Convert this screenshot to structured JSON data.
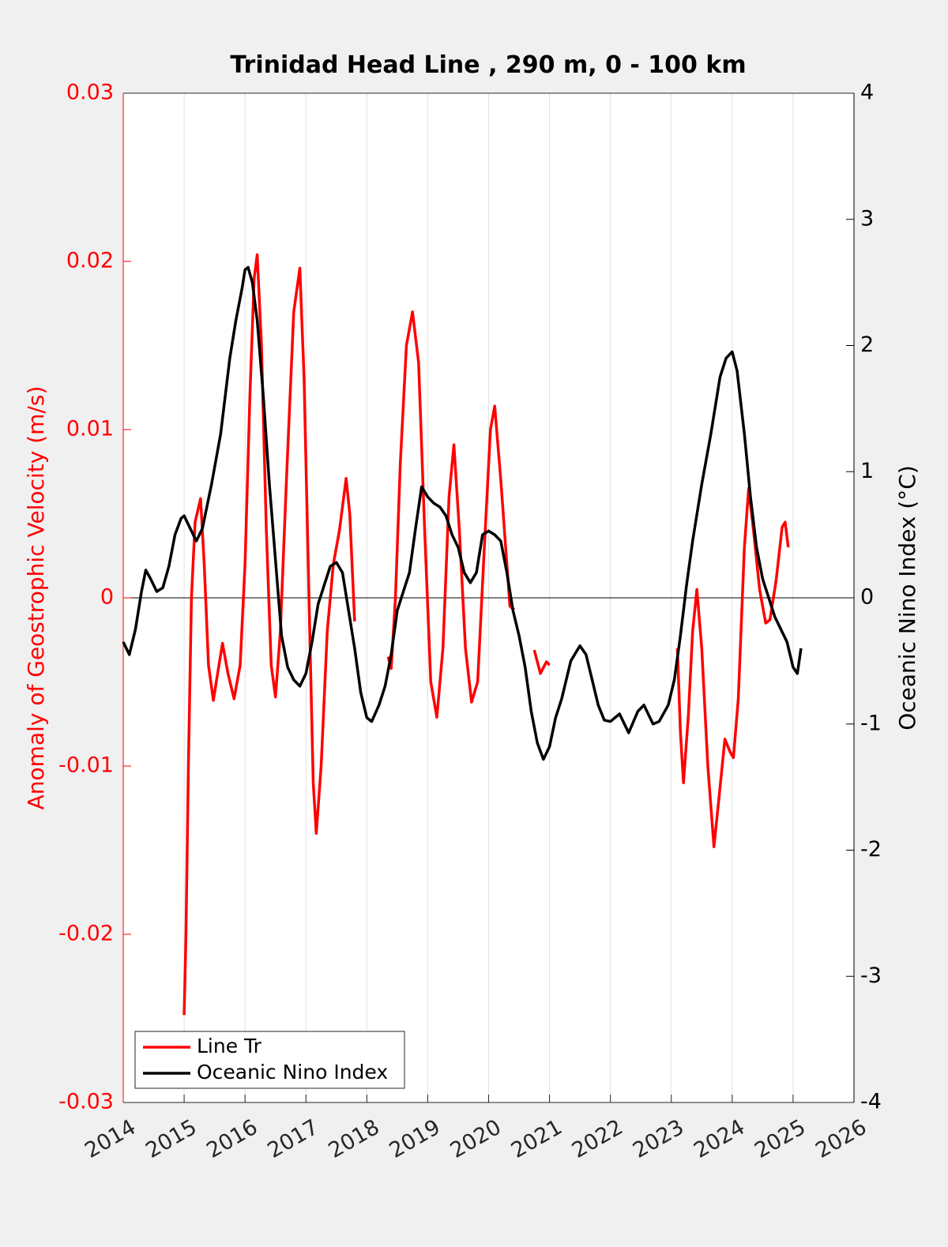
{
  "chart_data": {
    "type": "line",
    "title": "Trinidad Head Line , 290 m, 0 - 100 km",
    "y_label": "Anomaly of Geostrophic Velocity (m/s)",
    "y2_label": "Oceanic Nino Index (°C)",
    "xlim": [
      2014,
      2026
    ],
    "xticks": [
      2014,
      2015,
      2016,
      2017,
      2018,
      2019,
      2020,
      2021,
      2022,
      2023,
      2024,
      2025,
      2026
    ],
    "ylim": [
      -0.03,
      0.03
    ],
    "yticks": [
      -0.03,
      -0.02,
      -0.01,
      0,
      0.01,
      0.02,
      0.03
    ],
    "y2lim": [
      -4,
      4
    ],
    "y2ticks": [
      -4,
      -3,
      -2,
      -1,
      0,
      1,
      2,
      3,
      4
    ],
    "grid": "x",
    "legend": "lower left",
    "y_color": "#ff0000",
    "y2_color": "#000000",
    "series": [
      {
        "name": "Line Tr",
        "color": "#ff0000",
        "x": [
          2015.0,
          2015.03,
          2015.07,
          2015.12,
          2015.18,
          2015.27,
          2015.33,
          2015.4,
          2015.48,
          2015.55,
          2015.63,
          2015.72,
          2015.82,
          2015.92,
          2016.0,
          2016.08,
          2016.15,
          2016.2,
          2016.27,
          2016.35,
          2016.43,
          2016.5,
          2016.58,
          2016.68,
          2016.8,
          2016.9,
          2016.97,
          2017.05,
          2017.12,
          2017.17,
          2017.25,
          2017.35,
          2017.45,
          2017.55,
          2017.66,
          2017.72,
          2017.8,
          2018.1,
          2018.35,
          2018.4,
          2018.47,
          2018.55,
          2018.65,
          2018.75,
          2018.85,
          2018.95,
          2019.05,
          2019.15,
          2019.25,
          2019.35,
          2019.43,
          2019.52,
          2019.62,
          2019.72,
          2019.82,
          2019.93,
          2020.03,
          2020.1,
          2020.2,
          2020.28,
          2020.35,
          2020.42,
          2020.6,
          2020.75,
          2020.85,
          2020.95,
          2021.0,
          2022.0,
          2023.1,
          2023.15,
          2023.2,
          2023.28,
          2023.35,
          2023.42,
          2023.5,
          2023.6,
          2023.7,
          2023.78,
          2023.88,
          2023.97,
          2024.02,
          2024.1,
          2024.2,
          2024.27,
          2024.35,
          2024.45,
          2024.55,
          2024.62,
          2024.72,
          2024.82,
          2024.87,
          2024.92
        ],
        "values": [
          -0.0248,
          -0.02,
          -0.01,
          0.0,
          0.0045,
          0.0059,
          0.002,
          -0.004,
          -0.0061,
          -0.0045,
          -0.0027,
          -0.0045,
          -0.006,
          -0.004,
          0.002,
          0.012,
          0.019,
          0.0204,
          0.015,
          0.004,
          -0.004,
          -0.0059,
          -0.002,
          0.007,
          0.017,
          0.0196,
          0.013,
          0.0,
          -0.011,
          -0.014,
          -0.01,
          -0.002,
          0.002,
          0.004,
          0.0071,
          0.005,
          -0.0014,
          null,
          -0.0035,
          -0.0042,
          0.0,
          0.008,
          0.015,
          0.017,
          0.014,
          0.004,
          -0.005,
          -0.0071,
          -0.003,
          0.006,
          0.0091,
          0.004,
          -0.003,
          -0.0062,
          -0.005,
          0.003,
          0.01,
          0.0114,
          0.007,
          0.003,
          -0.0005,
          -0.0007,
          null,
          -0.0031,
          -0.0045,
          -0.0038,
          -0.004,
          null,
          -0.003,
          -0.008,
          -0.011,
          -0.007,
          -0.002,
          0.0005,
          -0.003,
          -0.01,
          -0.0148,
          -0.012,
          -0.0084,
          -0.0092,
          -0.0095,
          -0.006,
          0.003,
          0.0065,
          0.004,
          0.0005,
          -0.0015,
          -0.0013,
          0.001,
          0.0042,
          0.0045,
          0.003
        ]
      },
      {
        "name": "Oceanic Nino Index",
        "color": "#000000",
        "axis": "y2",
        "x": [
          2014.0,
          2014.1,
          2014.2,
          2014.3,
          2014.37,
          2014.45,
          2014.55,
          2014.65,
          2014.75,
          2014.85,
          2014.95,
          2015.0,
          2015.1,
          2015.2,
          2015.3,
          2015.45,
          2015.6,
          2015.75,
          2015.85,
          2015.95,
          2016.0,
          2016.05,
          2016.12,
          2016.2,
          2016.3,
          2016.4,
          2016.5,
          2016.6,
          2016.7,
          2016.8,
          2016.9,
          2017.0,
          2017.1,
          2017.2,
          2017.3,
          2017.4,
          2017.5,
          2017.6,
          2017.7,
          2017.8,
          2017.9,
          2018.0,
          2018.08,
          2018.2,
          2018.3,
          2018.4,
          2018.5,
          2018.6,
          2018.7,
          2018.8,
          2018.9,
          2019.0,
          2019.1,
          2019.2,
          2019.3,
          2019.4,
          2019.5,
          2019.6,
          2019.7,
          2019.8,
          2019.9,
          2020.0,
          2020.1,
          2020.2,
          2020.3,
          2020.4,
          2020.5,
          2020.6,
          2020.7,
          2020.8,
          2020.9,
          2021.0,
          2021.1,
          2021.2,
          2021.35,
          2021.5,
          2021.6,
          2021.7,
          2021.8,
          2021.9,
          2022.0,
          2022.15,
          2022.3,
          2022.45,
          2022.55,
          2022.7,
          2022.8,
          2022.95,
          2023.05,
          2023.15,
          2023.25,
          2023.35,
          2023.5,
          2023.65,
          2023.8,
          2023.9,
          2024.0,
          2024.08,
          2024.2,
          2024.3,
          2024.4,
          2024.5,
          2024.6,
          2024.7,
          2024.8,
          2024.9,
          2025.0,
          2025.07,
          2025.13
        ],
        "values": [
          -0.35,
          -0.45,
          -0.25,
          0.05,
          0.22,
          0.15,
          0.05,
          0.08,
          0.25,
          0.5,
          0.63,
          0.65,
          0.55,
          0.45,
          0.55,
          0.9,
          1.3,
          1.9,
          2.2,
          2.45,
          2.6,
          2.62,
          2.5,
          2.2,
          1.6,
          0.9,
          0.3,
          -0.3,
          -0.55,
          -0.65,
          -0.7,
          -0.6,
          -0.35,
          -0.05,
          0.1,
          0.25,
          0.28,
          0.2,
          -0.1,
          -0.4,
          -0.75,
          -0.95,
          -0.98,
          -0.85,
          -0.7,
          -0.45,
          -0.1,
          0.05,
          0.2,
          0.55,
          0.88,
          0.8,
          0.75,
          0.72,
          0.65,
          0.5,
          0.4,
          0.2,
          0.12,
          0.2,
          0.5,
          0.53,
          0.5,
          0.45,
          0.2,
          -0.1,
          -0.3,
          -0.55,
          -0.9,
          -1.15,
          -1.28,
          -1.18,
          -0.95,
          -0.8,
          -0.5,
          -0.38,
          -0.45,
          -0.65,
          -0.85,
          -0.97,
          -0.98,
          -0.92,
          -1.07,
          -0.9,
          -0.85,
          -1.0,
          -0.98,
          -0.85,
          -0.65,
          -0.3,
          0.1,
          0.45,
          0.9,
          1.3,
          1.75,
          1.9,
          1.95,
          1.8,
          1.3,
          0.8,
          0.4,
          0.15,
          0.0,
          -0.15,
          -0.25,
          -0.35,
          -0.55,
          -0.6,
          -0.4
        ]
      }
    ]
  }
}
